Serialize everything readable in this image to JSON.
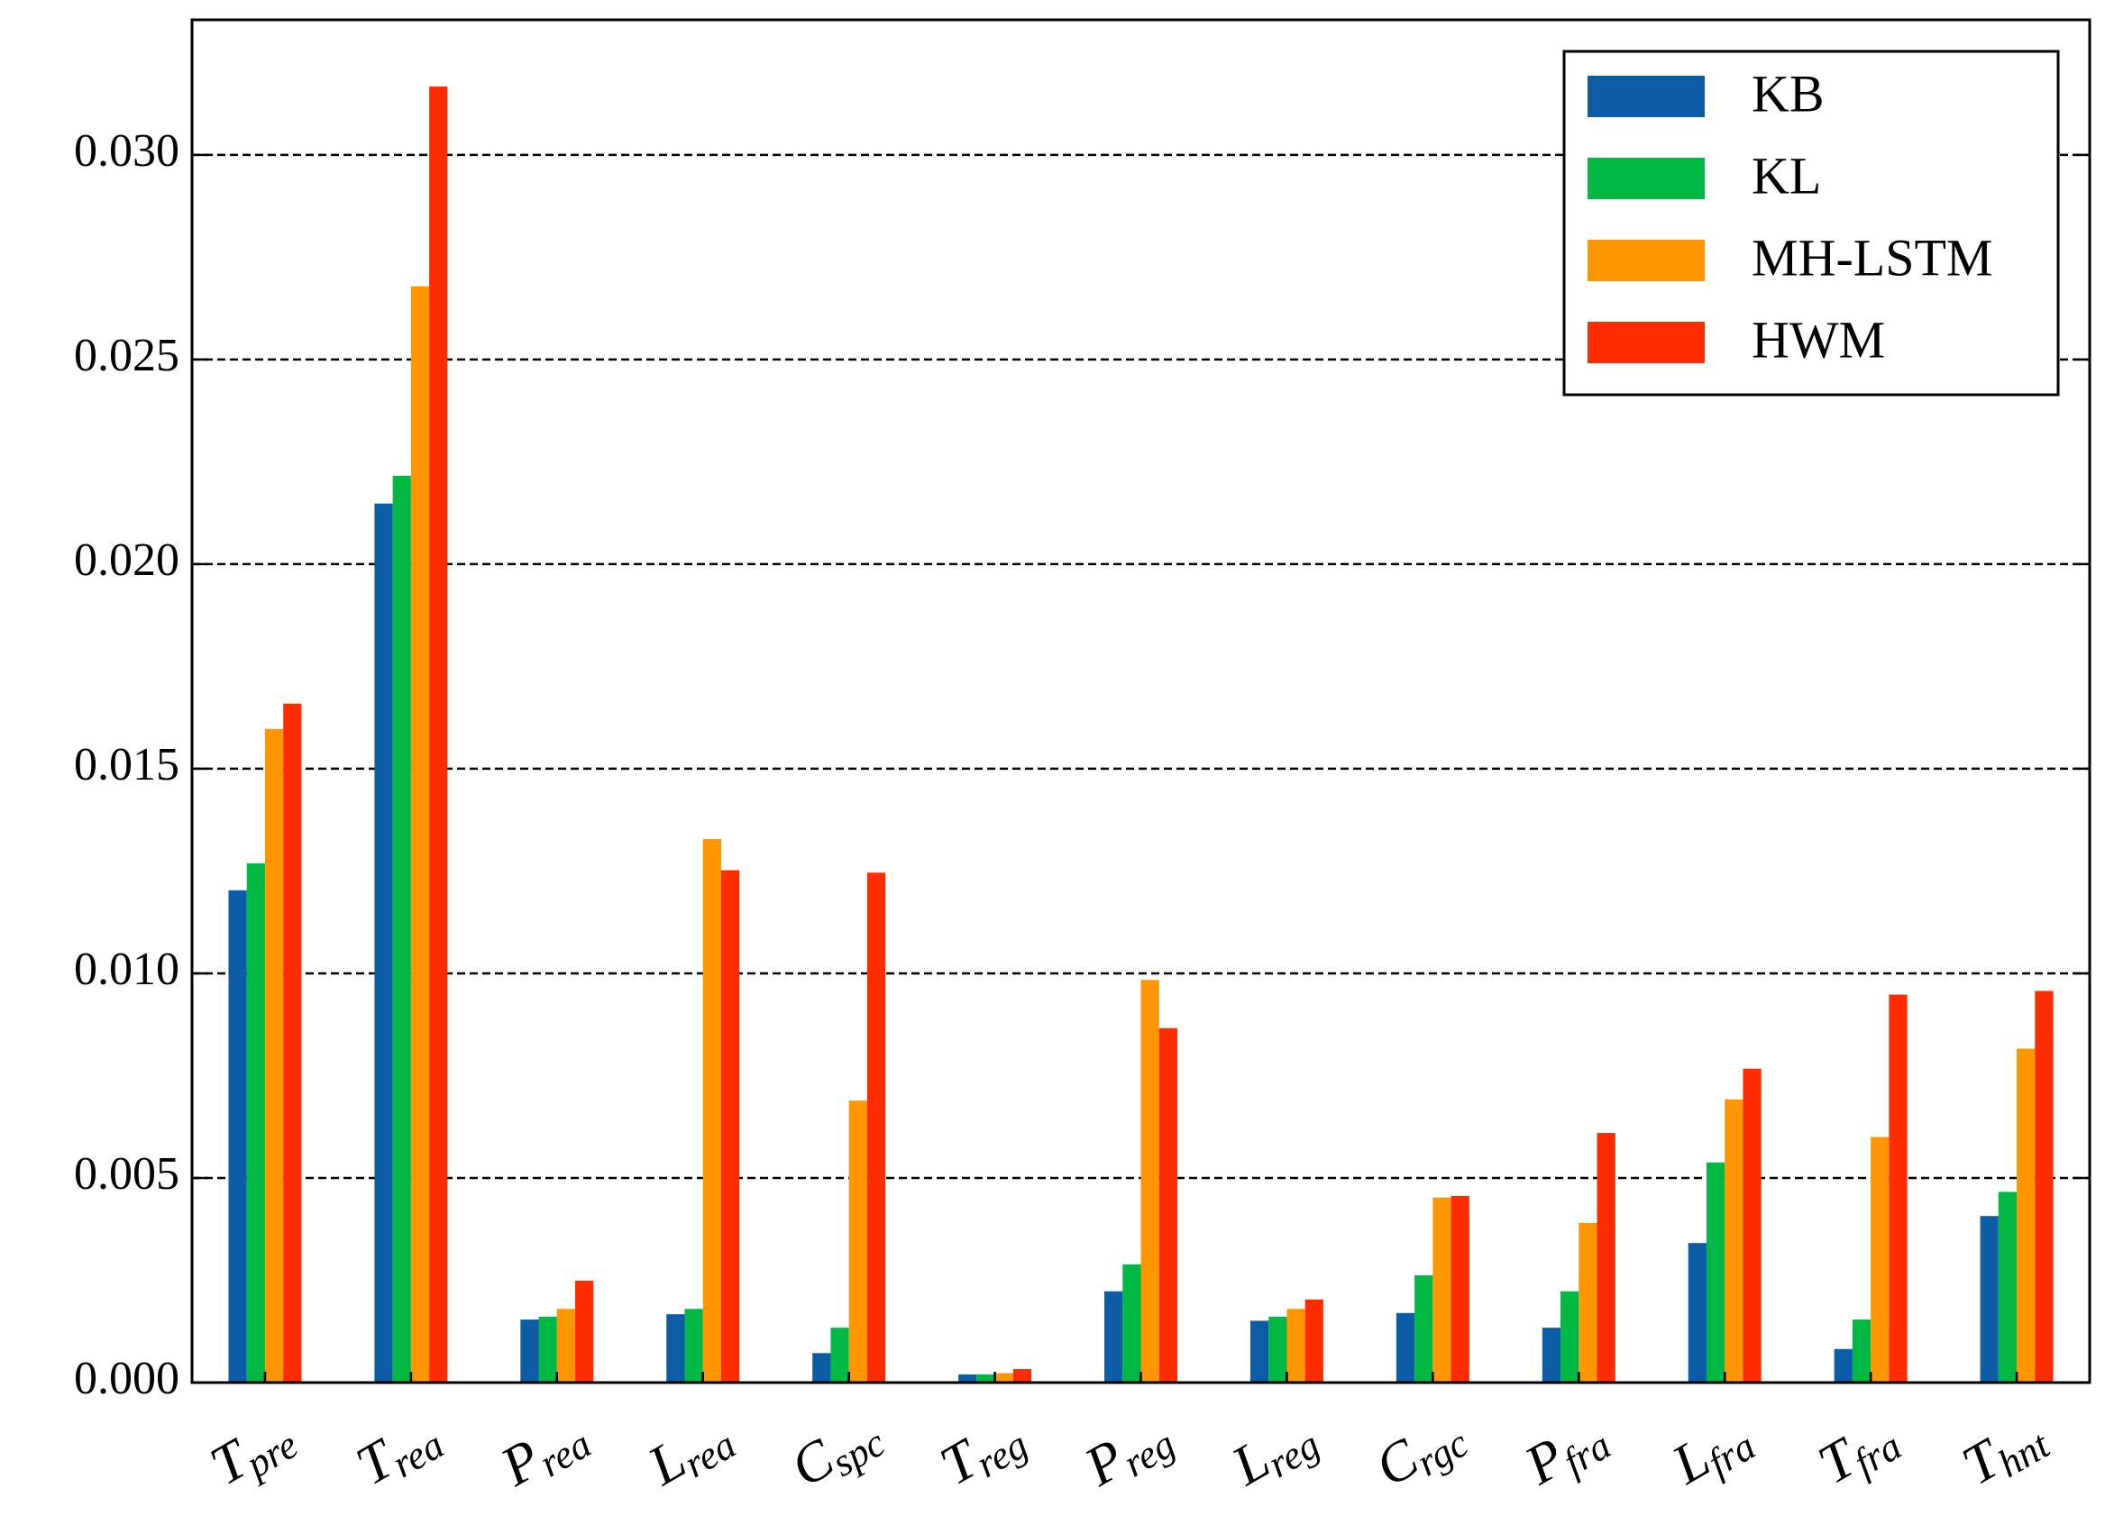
{
  "chart_data": {
    "type": "bar",
    "categories": [
      {
        "symbol": "T",
        "subscript": "pre"
      },
      {
        "symbol": "T",
        "subscript": "rea"
      },
      {
        "symbol": "P",
        "subscript": "rea"
      },
      {
        "symbol": "L",
        "subscript": "rea"
      },
      {
        "symbol": "C",
        "subscript": "spc"
      },
      {
        "symbol": "T",
        "subscript": "reg"
      },
      {
        "symbol": "P",
        "subscript": "reg"
      },
      {
        "symbol": "L",
        "subscript": "reg"
      },
      {
        "symbol": "C",
        "subscript": "rgc"
      },
      {
        "symbol": "P",
        "subscript": "fra"
      },
      {
        "symbol": "L",
        "subscript": "fra"
      },
      {
        "symbol": "T",
        "subscript": "fra"
      },
      {
        "symbol": "T",
        "subscript": "hnt"
      }
    ],
    "series": [
      {
        "name": "KB",
        "color": "#0c5da5",
        "values": [
          0.01203,
          0.02148,
          0.00154,
          0.00167,
          0.00072,
          0.0002,
          0.00223,
          0.00151,
          0.0017,
          0.00134,
          0.00341,
          0.00082,
          0.00407
        ]
      },
      {
        "name": "KL",
        "color": "#00b945",
        "values": [
          0.01269,
          0.02216,
          0.00161,
          0.0018,
          0.00134,
          0.0002,
          0.00289,
          0.00161,
          0.00262,
          0.00223,
          0.00538,
          0.00154,
          0.00466
        ]
      },
      {
        "name": "MH-LSTM",
        "color": "#ff9500",
        "values": [
          0.01597,
          0.02679,
          0.0018,
          0.01328,
          0.00689,
          0.00023,
          0.00984,
          0.0018,
          0.00452,
          0.0039,
          0.00692,
          0.006,
          0.00816
        ]
      },
      {
        "name": "HWM",
        "color": "#ff2c00",
        "values": [
          0.01659,
          0.03167,
          0.00249,
          0.01252,
          0.01246,
          0.00033,
          0.00866,
          0.00203,
          0.00456,
          0.0061,
          0.00767,
          0.00948,
          0.00957
        ]
      }
    ],
    "ylim": [
      0,
      0.0333
    ],
    "yticks": [
      {
        "value": 0,
        "label": "0.000"
      },
      {
        "value": 0.005,
        "label": "0.005"
      },
      {
        "value": 0.01,
        "label": "0.010"
      },
      {
        "value": 0.015,
        "label": "0.015"
      },
      {
        "value": 0.02,
        "label": "0.020"
      },
      {
        "value": 0.025,
        "label": "0.025"
      },
      {
        "value": 0.03,
        "label": "0.030"
      }
    ],
    "grid": true,
    "legend": "upper right"
  }
}
